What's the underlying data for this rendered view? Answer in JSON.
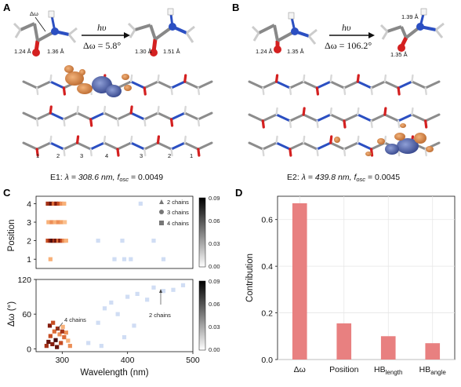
{
  "panels": {
    "A": {
      "letter": "A",
      "arrow_label_top": "hυ",
      "arrow_label_bottom": "Δω = 5.8°",
      "left_labels": {
        "omega": "Δω",
        "bond_co": "1.24 Å",
        "bond_cn": "1.36 Å"
      },
      "right_labels": {
        "bond_co": "1.30 Å",
        "bond_cn": "1.51 Å"
      },
      "residue_numbers": [
        "1",
        "2",
        "3",
        "4",
        "3",
        "2",
        "1"
      ],
      "caption_prefix": "E1: ",
      "caption_lambda": "λ = 308.6 nm, ",
      "caption_fosc_sym": "f",
      "caption_fosc_sub": "osc",
      "caption_fosc_val": " = 0.0049"
    },
    "B": {
      "letter": "B",
      "arrow_label_top": "hυ",
      "arrow_label_bottom": "Δω = 106.2°",
      "left_labels": {
        "bond_co": "1.24 Å",
        "bond_cn": "1.35 Å"
      },
      "right_labels": {
        "bond_nh": "1.39 Å",
        "bond_co": "1.35 Å"
      },
      "caption_prefix": "E2: ",
      "caption_lambda": "λ = 439.8 nm, ",
      "caption_fosc_sym": "f",
      "caption_fosc_sub": "osc",
      "caption_fosc_val": " = 0.0045"
    },
    "C": {
      "letter": "C",
      "legend": [
        "2 chains",
        "3 chains",
        "4 chains"
      ],
      "annotation_4chains": "4 chains",
      "annotation_2chains": "2 chains",
      "colorbar_ticks": [
        "0.09",
        "0.06",
        "0.03",
        "0.00"
      ]
    },
    "D": {
      "letter": "D"
    }
  },
  "chart_data": [
    {
      "type": "scatter",
      "panel": "C-top",
      "xlabel": "",
      "ylabel": "Position",
      "xlim": [
        260,
        500
      ],
      "ylim": [
        0.5,
        4.4
      ],
      "yticks": [
        1,
        2,
        3,
        4
      ],
      "colorbar_range": [
        0.0,
        0.09
      ],
      "points": [
        {
          "x": 278,
          "y": 4,
          "c": 0.06
        },
        {
          "x": 283,
          "y": 4,
          "c": 0.08
        },
        {
          "x": 287,
          "y": 4,
          "c": 0.04
        },
        {
          "x": 291,
          "y": 4,
          "c": 0.07
        },
        {
          "x": 295,
          "y": 4,
          "c": 0.05
        },
        {
          "x": 299,
          "y": 4,
          "c": 0.03
        },
        {
          "x": 303,
          "y": 4,
          "c": 0.02
        },
        {
          "x": 420,
          "y": 4,
          "c": 0.005
        },
        {
          "x": 279,
          "y": 3,
          "c": 0.02
        },
        {
          "x": 284,
          "y": 3,
          "c": 0.03
        },
        {
          "x": 289,
          "y": 3,
          "c": 0.02
        },
        {
          "x": 294,
          "y": 3,
          "c": 0.03
        },
        {
          "x": 299,
          "y": 3,
          "c": 0.025
        },
        {
          "x": 304,
          "y": 3,
          "c": 0.015
        },
        {
          "x": 278,
          "y": 2,
          "c": 0.05
        },
        {
          "x": 282,
          "y": 2,
          "c": 0.07
        },
        {
          "x": 285,
          "y": 2,
          "c": 0.09
        },
        {
          "x": 288,
          "y": 2,
          "c": 0.06
        },
        {
          "x": 291,
          "y": 2,
          "c": 0.08
        },
        {
          "x": 294,
          "y": 2,
          "c": 0.04
        },
        {
          "x": 297,
          "y": 2,
          "c": 0.07
        },
        {
          "x": 300,
          "y": 2,
          "c": 0.05
        },
        {
          "x": 303,
          "y": 2,
          "c": 0.03
        },
        {
          "x": 306,
          "y": 2,
          "c": 0.02
        },
        {
          "x": 355,
          "y": 2,
          "c": 0.005
        },
        {
          "x": 392,
          "y": 2,
          "c": 0.006
        },
        {
          "x": 440,
          "y": 2,
          "c": 0.008
        },
        {
          "x": 282,
          "y": 1,
          "c": 0.02
        },
        {
          "x": 380,
          "y": 1,
          "c": 0.005
        },
        {
          "x": 395,
          "y": 1,
          "c": 0.004
        },
        {
          "x": 405,
          "y": 1,
          "c": 0.005
        },
        {
          "x": 455,
          "y": 1,
          "c": 0.004
        }
      ]
    },
    {
      "type": "scatter",
      "panel": "C-bottom",
      "xlabel": "Wavelength (nm)",
      "ylabel": "Δω (°)",
      "xlim": [
        260,
        500
      ],
      "ylim": [
        -5,
        120
      ],
      "xticks": [
        300,
        400,
        500
      ],
      "yticks": [
        0,
        60,
        120
      ],
      "colorbar_range": [
        0.0,
        0.09
      ],
      "points": [
        {
          "x": 276,
          "y": 5,
          "c": 0.06
        },
        {
          "x": 279,
          "y": 12,
          "c": 0.08
        },
        {
          "x": 282,
          "y": 22,
          "c": 0.05
        },
        {
          "x": 285,
          "y": 8,
          "c": 0.07
        },
        {
          "x": 288,
          "y": 30,
          "c": 0.04
        },
        {
          "x": 290,
          "y": 15,
          "c": 0.09
        },
        {
          "x": 293,
          "y": 35,
          "c": 0.06
        },
        {
          "x": 296,
          "y": 25,
          "c": 0.03
        },
        {
          "x": 298,
          "y": 10,
          "c": 0.05
        },
        {
          "x": 301,
          "y": 38,
          "c": 0.02
        },
        {
          "x": 303,
          "y": 20,
          "c": 0.04
        },
        {
          "x": 306,
          "y": 28,
          "c": 0.03
        },
        {
          "x": 309,
          "y": 14,
          "c": 0.02
        },
        {
          "x": 312,
          "y": 5,
          "c": 0.03
        },
        {
          "x": 281,
          "y": 40,
          "c": 0.07
        },
        {
          "x": 286,
          "y": 45,
          "c": 0.05
        },
        {
          "x": 292,
          "y": 3,
          "c": 0.08
        },
        {
          "x": 300,
          "y": 30,
          "c": 0.06
        },
        {
          "x": 340,
          "y": 10,
          "c": 0.005
        },
        {
          "x": 355,
          "y": 45,
          "c": 0.006
        },
        {
          "x": 365,
          "y": 70,
          "c": 0.005
        },
        {
          "x": 375,
          "y": 80,
          "c": 0.007
        },
        {
          "x": 385,
          "y": 60,
          "c": 0.004
        },
        {
          "x": 395,
          "y": 20,
          "c": 0.005
        },
        {
          "x": 400,
          "y": 90,
          "c": 0.006
        },
        {
          "x": 415,
          "y": 95,
          "c": 0.005
        },
        {
          "x": 430,
          "y": 85,
          "c": 0.004
        },
        {
          "x": 440,
          "y": 106,
          "c": 0.008
        },
        {
          "x": 455,
          "y": 100,
          "c": 0.005
        },
        {
          "x": 470,
          "y": 102,
          "c": 0.004
        },
        {
          "x": 485,
          "y": 110,
          "c": 0.004
        },
        {
          "x": 360,
          "y": 5,
          "c": 0.004
        },
        {
          "x": 410,
          "y": 40,
          "c": 0.004
        }
      ]
    },
    {
      "type": "bar",
      "panel": "D",
      "categories": [
        "Δω",
        "Position",
        "HB_length",
        "HB_angle"
      ],
      "category_labels": [
        {
          "main": "Δω",
          "sub": ""
        },
        {
          "main": "Position",
          "sub": ""
        },
        {
          "main": "HB",
          "sub": "length"
        },
        {
          "main": "HB",
          "sub": "angle"
        }
      ],
      "values": [
        0.67,
        0.155,
        0.1,
        0.07
      ],
      "ylabel": "Contribution",
      "xlabel": "",
      "ylim": [
        0,
        0.7
      ],
      "yticks": [
        0.0,
        0.2,
        0.4,
        0.6
      ],
      "bar_color": "#e88080",
      "grid": true
    }
  ]
}
